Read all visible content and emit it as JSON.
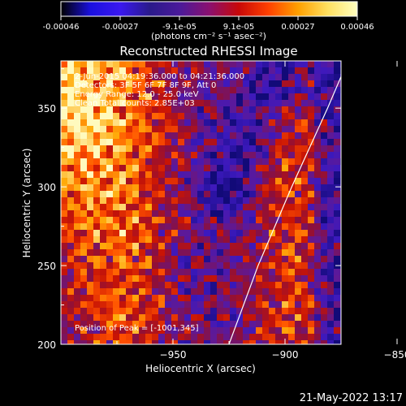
{
  "colorbar": {
    "tick_labels": [
      "-0.00046",
      "-0.00027",
      "-9.1e-05",
      "9.1e-05",
      "0.00027",
      "0.00046"
    ],
    "units_label": "(photons cm⁻² s⁻¹ asec⁻²)",
    "range": [
      -0.00046,
      0.00046
    ],
    "colormap": [
      "#000000",
      "#1a10e0",
      "#3a18f0",
      "#2a1a8a",
      "#4a1a9a",
      "#8a1070",
      "#c80808",
      "#ff4000",
      "#ffa000",
      "#ffe060",
      "#ffffc0"
    ]
  },
  "chart_data": {
    "type": "heatmap",
    "title": "Reconstructed RHESSI Image",
    "xlabel": "Heliocentric X (arcsec)",
    "ylabel": "Heliocentric Y (arcsec)",
    "xlim": [
      -1000,
      -875
    ],
    "ylim": [
      200,
      380
    ],
    "x_ticks": [
      -950,
      -900,
      -850
    ],
    "x_tick_labels": [
      "−950",
      "−900",
      "−850"
    ],
    "y_ticks": [
      200,
      250,
      300,
      350
    ],
    "y_tick_labels": [
      "200",
      "250",
      "300",
      "350"
    ],
    "limb_arc": [
      [
        -925,
        200
      ],
      [
        -912,
        250
      ],
      [
        -897,
        300
      ],
      [
        -881,
        350
      ],
      [
        -872,
        380
      ]
    ],
    "annotations": [
      "2-Jun-2015 04:19:36.000 to 04:21:36.000",
      "Detectors: 3F 5F 6F 7F 8F 9F, Att 0",
      "Energy Range: 12.0 - 25.0 keV",
      "Clean     Total counts: 2.85E+03"
    ],
    "peak_label": "Position of Peak = [-1001,345]"
  },
  "footer": {
    "timestamp": "21-May-2022 13:17"
  }
}
